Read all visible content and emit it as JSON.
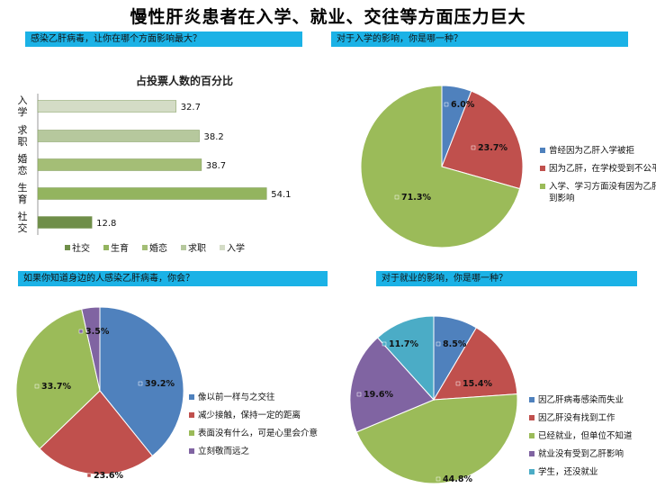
{
  "page_title": "慢性肝炎患者在入学、就业、交往等方面压力巨大",
  "panels": [
    {
      "question": "感染乙肝病毒，让你在哪个方面影响最大？"
    },
    {
      "question": "对于入学的影响，你是哪一种？"
    },
    {
      "question": "如果你知道身边的人感染乙肝病毒，你会？"
    },
    {
      "question": "对于就业的影响，你是哪一种？"
    }
  ],
  "colors": {
    "question_bar": "#1bb2e6",
    "blue": "#4f81bd",
    "red": "#c0504d",
    "green": "#9bbb59",
    "purple": "#8064a2",
    "cyan": "#4bacc6"
  },
  "chart_data": [
    {
      "type": "bar",
      "orientation": "horizontal",
      "title": "占投票人数的百分比",
      "categories": [
        "入学",
        "求职",
        "婚恋",
        "生育",
        "社交"
      ],
      "values": [
        32.7,
        38.2,
        38.7,
        54.1,
        12.8
      ],
      "xlim": [
        0,
        60
      ],
      "legend": {
        "position": "bottom",
        "entries": [
          "社交",
          "生育",
          "婚恋",
          "求职",
          "入学"
        ]
      },
      "bar_colors": [
        "#d4dcc6",
        "#b6c89d",
        "#a4be76",
        "#93b45f",
        "#6f8e49"
      ]
    },
    {
      "type": "pie",
      "labels": [
        "曾经因为乙肝入学被拒",
        "因为乙肝，在学校受到不公平待遇",
        "入学、学习方面没有因为乙肝而受到影响"
      ],
      "values": [
        6.0,
        23.7,
        71.3
      ],
      "value_labels": [
        "6.0%",
        "23.7%",
        "71.3%"
      ],
      "legend": "right"
    },
    {
      "type": "pie",
      "labels": [
        "像以前一样与之交往",
        "减少接触，保持一定的距离",
        "表面没有什么，可是心里会介意",
        "立刻敬而远之"
      ],
      "values": [
        39.2,
        23.6,
        33.7,
        3.5
      ],
      "value_labels": [
        "39.2%",
        "23.6%",
        "33.7%",
        "3.5%"
      ],
      "legend": "right"
    },
    {
      "type": "pie",
      "labels": [
        "因乙肝病毒感染而失业",
        "因乙肝没有找到工作",
        "已经就业，但单位不知道",
        "就业没有受到乙肝影响",
        "学生，还没就业"
      ],
      "values": [
        8.5,
        15.4,
        44.8,
        19.6,
        11.7
      ],
      "value_labels": [
        "8.5%",
        "15.4%",
        "44.8%",
        "19.6%",
        "11.7%"
      ],
      "legend": "right"
    }
  ]
}
